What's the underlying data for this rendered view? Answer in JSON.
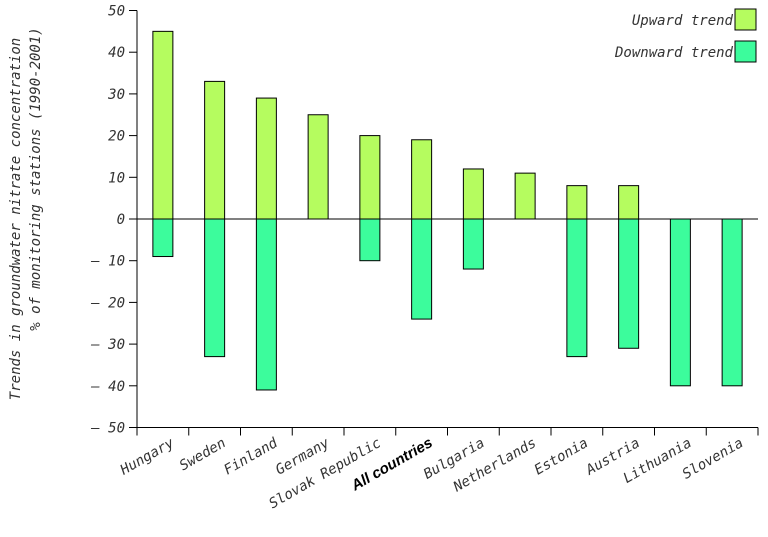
{
  "chart_data": {
    "type": "bar",
    "ylabel_lines": [
      "Trends in groundwater nitrate concentration",
      "% of monitoring stations (1990-2001)"
    ],
    "categories": [
      "Hungary",
      "Sweden",
      "Finland",
      "Germany",
      "Slovak Republic",
      "All countries",
      "Bulgaria",
      "Netherlands",
      "Estonia",
      "Austria",
      "Lithuania",
      "Slovenia"
    ],
    "series": [
      {
        "name": "Upward trend",
        "color": "#b5fc5f",
        "values": [
          45,
          33,
          29,
          25,
          20,
          19,
          12,
          11,
          8,
          8,
          0,
          0
        ]
      },
      {
        "name": "Downward trend",
        "color": "#3cfc9c",
        "values": [
          -9,
          -33,
          -41,
          0,
          -10,
          -24,
          -12,
          0,
          -33,
          -31,
          -40,
          -40
        ]
      }
    ],
    "ylim": [
      -50,
      50
    ],
    "yticks": [
      50,
      40,
      30,
      20,
      10,
      0,
      -10,
      -20,
      -30,
      -40,
      -50
    ],
    "ytick_labels": [
      "50",
      "40",
      "30",
      "20",
      "10",
      "0",
      "– 10",
      "– 20",
      "– 30",
      "– 40",
      "– 50"
    ],
    "legend": "top-right",
    "grid": false,
    "highlight_category": "All countries"
  }
}
